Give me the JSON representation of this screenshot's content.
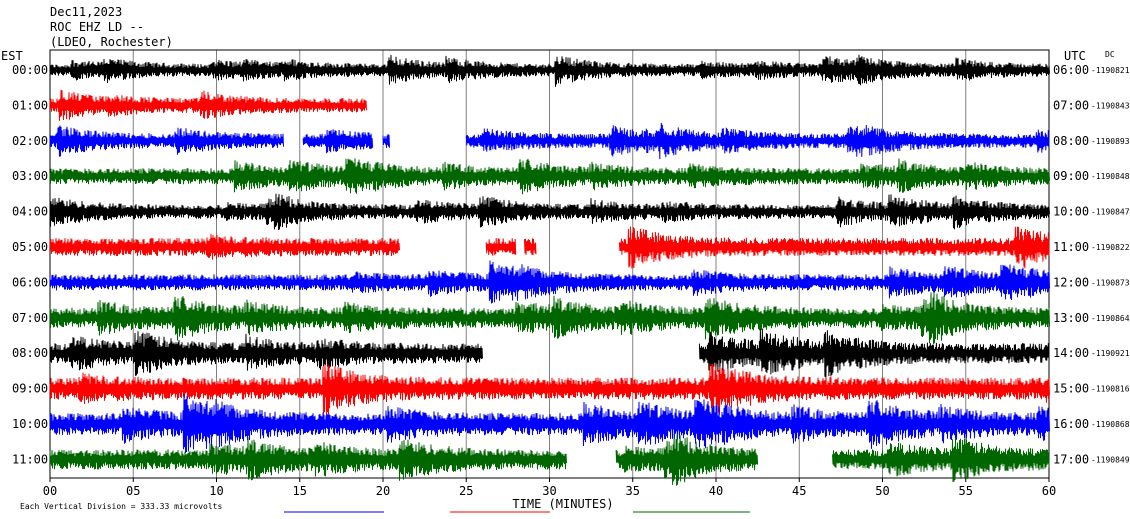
{
  "header": {
    "line1": "Dec11,2023",
    "line2": "ROC EHZ LD --",
    "line3": "(LDEO, Rochester)"
  },
  "left_axis_label": "EST",
  "right_axis_label": "UTC",
  "dc_label": "DC",
  "footer_scale": "Each Vertical Division =  333.33 microvolts",
  "chart_data": {
    "type": "line",
    "title": "",
    "xlabel": "TIME (MINUTES)",
    "ylabel": "",
    "xlim": [
      0,
      60
    ],
    "x_ticks": [
      "00",
      "05",
      "10",
      "15",
      "20",
      "25",
      "30",
      "35",
      "40",
      "45",
      "50",
      "55",
      "60"
    ],
    "grid": "vertical lines every 5 minutes",
    "colors": [
      "#000000",
      "#ff0000",
      "#0000ff",
      "#006600"
    ],
    "rows": [
      {
        "est": "00:00",
        "utc": "06:00",
        "dc": "-1190821",
        "color": "#000000",
        "amp": 6,
        "gaps": []
      },
      {
        "est": "01:00",
        "utc": "07:00",
        "dc": "-1190843",
        "color": "#ff0000",
        "amp": 7,
        "gaps": [
          [
            19,
            60
          ]
        ]
      },
      {
        "est": "02:00",
        "utc": "08:00",
        "dc": "-1190893",
        "color": "#0000ff",
        "amp": 7,
        "gaps": [
          [
            14,
            15.2
          ],
          [
            19.4,
            20
          ],
          [
            20.4,
            25
          ]
        ]
      },
      {
        "est": "03:00",
        "utc": "09:00",
        "dc": "-1190848",
        "color": "#006600",
        "amp": 8,
        "gaps": []
      },
      {
        "est": "04:00",
        "utc": "10:00",
        "dc": "-1190847",
        "color": "#000000",
        "amp": 7,
        "gaps": []
      },
      {
        "est": "05:00",
        "utc": "11:00",
        "dc": "-1190822",
        "color": "#ff0000",
        "amp": 9,
        "gaps": [
          [
            21,
            26.2
          ],
          [
            28,
            28.5
          ],
          [
            29.2,
            34.2
          ]
        ]
      },
      {
        "est": "06:00",
        "utc": "12:00",
        "dc": "-1190873",
        "color": "#0000ff",
        "amp": 8,
        "gaps": []
      },
      {
        "est": "07:00",
        "utc": "13:00",
        "dc": "-1190864",
        "color": "#006600",
        "amp": 10,
        "gaps": []
      },
      {
        "est": "08:00",
        "utc": "14:00",
        "dc": "-1190921",
        "color": "#000000",
        "amp": 10,
        "gaps": [
          [
            26,
            39
          ]
        ]
      },
      {
        "est": "09:00",
        "utc": "15:00",
        "dc": "-1190816",
        "color": "#ff0000",
        "amp": 11,
        "gaps": []
      },
      {
        "est": "10:00",
        "utc": "16:00",
        "dc": "-1190868",
        "color": "#0000ff",
        "amp": 11,
        "gaps": []
      },
      {
        "est": "11:00",
        "utc": "17:00",
        "dc": "-1190849",
        "color": "#006600",
        "amp": 10,
        "gaps": [
          [
            31,
            34
          ],
          [
            42.5,
            47
          ]
        ]
      }
    ]
  }
}
